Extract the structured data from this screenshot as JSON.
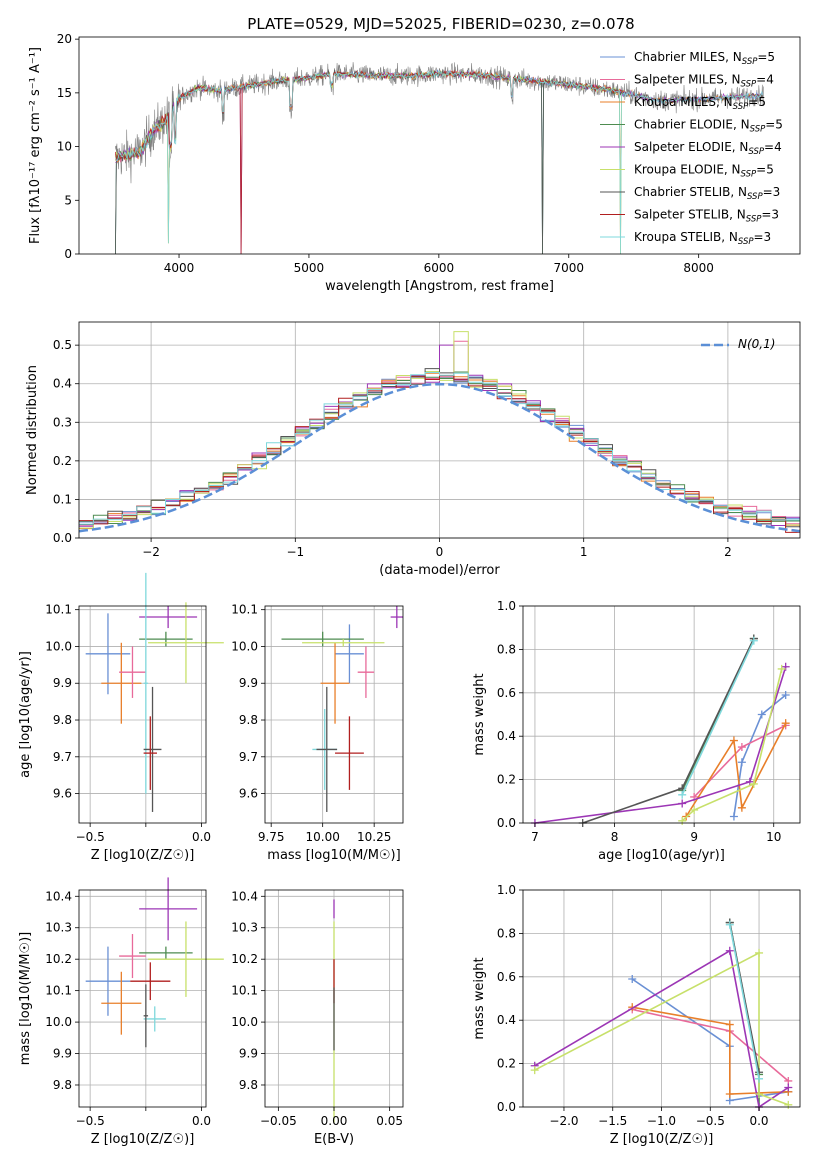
{
  "figure": {
    "title": "PLATE=0529, MJD=52025, FIBERID=0230, z=0.078"
  },
  "colors": {
    "Chabrier MILES": "#6a90d4",
    "Salpeter MILES": "#e86a9a",
    "Kroupa MILES": "#e87f2a",
    "Chabrier ELODIE": "#4e8c50",
    "Salpeter ELODIE": "#9c36b5",
    "Kroupa ELODIE": "#c7e06a",
    "Chabrier STELIB": "#555555",
    "Salpeter STELIB": "#b11f1f",
    "Kroupa STELIB": "#7fd8dc",
    "spectrum": "#808080",
    "normal": "#5b8fd6"
  },
  "legend": {
    "entries": [
      {
        "name": "Chabrier MILES",
        "label": "Chabrier MILES, N",
        "sub": "SSP",
        "eq": "=5"
      },
      {
        "name": "Salpeter MILES",
        "label": "Salpeter MILES, N",
        "sub": "SSP",
        "eq": "=4"
      },
      {
        "name": "Kroupa MILES",
        "label": "Kroupa MILES, N",
        "sub": "SSP",
        "eq": "=5"
      },
      {
        "name": "Chabrier ELODIE",
        "label": "Chabrier ELODIE, N",
        "sub": "SSP",
        "eq": "=5"
      },
      {
        "name": "Salpeter ELODIE",
        "label": "Salpeter ELODIE, N",
        "sub": "SSP",
        "eq": "=4"
      },
      {
        "name": "Kroupa ELODIE",
        "label": "Kroupa ELODIE, N",
        "sub": "SSP",
        "eq": "=5"
      },
      {
        "name": "Chabrier STELIB",
        "label": "Chabrier STELIB, N",
        "sub": "SSP",
        "eq": "=3"
      },
      {
        "name": "Salpeter STELIB",
        "label": "Salpeter STELIB, N",
        "sub": "SSP",
        "eq": "=3"
      },
      {
        "name": "Kroupa STELIB",
        "label": "Kroupa STELIB, N",
        "sub": "SSP",
        "eq": "=3"
      }
    ]
  },
  "chart_data": [
    {
      "id": "spectrum",
      "type": "line",
      "xlabel": "wavelength [Angstrom, rest frame]",
      "ylabel": "Flux [fλ10⁻¹⁷ erg cm⁻² s⁻¹ A⁻¹]",
      "xlim": [
        3230,
        8780
      ],
      "ylim": [
        0,
        20.2
      ],
      "xticks": [
        4000,
        5000,
        6000,
        7000,
        8000
      ],
      "yticks": [
        0,
        5,
        10,
        15,
        20
      ],
      "continuum": [
        [
          3520,
          9.0
        ],
        [
          3700,
          9.5
        ],
        [
          3800,
          11.5
        ],
        [
          3900,
          12.5
        ],
        [
          4000,
          14.5
        ],
        [
          4150,
          15.5
        ],
        [
          4300,
          15.2
        ],
        [
          4500,
          15.6
        ],
        [
          4800,
          16.2
        ],
        [
          5000,
          16.4
        ],
        [
          5200,
          16.8
        ],
        [
          5500,
          16.6
        ],
        [
          5800,
          16.6
        ],
        [
          6000,
          16.8
        ],
        [
          6300,
          16.7
        ],
        [
          6600,
          16.3
        ],
        [
          7000,
          15.8
        ],
        [
          7300,
          15.3
        ],
        [
          7700,
          14.3
        ],
        [
          8000,
          14.4
        ],
        [
          8400,
          14.7
        ],
        [
          8500,
          14.8
        ]
      ],
      "dips": [
        [
          3510,
          0
        ],
        [
          3915,
          1.0
        ],
        [
          4480,
          0
        ],
        [
          6800,
          0
        ],
        [
          7400,
          0
        ]
      ]
    },
    {
      "id": "residuals",
      "type": "histogram",
      "xlabel": "(data-model)/error",
      "ylabel": "Normed distribution",
      "xlim": [
        -2.5,
        2.5
      ],
      "ylim": [
        0,
        0.56
      ],
      "xticks": [
        -2,
        -1,
        0,
        1,
        2
      ],
      "yticks": [
        0.0,
        0.1,
        0.2,
        0.3,
        0.4,
        0.5
      ],
      "bin_width": 0.1,
      "legend": "N(0,1)"
    },
    {
      "id": "age-vs-Z",
      "type": "scatter",
      "xlabel": "Z [log10(Z/Z☉)]",
      "ylabel": "age  [log10(age/yr)]",
      "xlim": [
        -0.55,
        0.02
      ],
      "ylim": [
        9.52,
        10.11
      ],
      "xticks": [
        -0.5,
        -0.25,
        0.0
      ],
      "xtick_labels": [
        "−0.5",
        "",
        "0.0"
      ],
      "yticks": [
        9.6,
        9.7,
        9.8,
        9.9,
        10.0,
        10.1
      ],
      "points": [
        {
          "name": "Chabrier MILES",
          "x": -0.42,
          "xerr": 0.1,
          "y": 9.98,
          "yerr": 0.11
        },
        {
          "name": "Kroupa MILES",
          "x": -0.36,
          "xerr": 0.09,
          "y": 9.9,
          "yerr": 0.11
        },
        {
          "name": "Salpeter MILES",
          "x": -0.31,
          "xerr": 0.06,
          "y": 9.93,
          "yerr": 0.07
        },
        {
          "name": "Salpeter ELODIE",
          "x": -0.15,
          "xerr": 0.13,
          "y": 10.08,
          "yerr": 0.03
        },
        {
          "name": "Chabrier ELODIE",
          "x": -0.16,
          "xerr": 0.12,
          "y": 10.02,
          "yerr": 0.02
        },
        {
          "name": "Kroupa ELODIE",
          "x": -0.07,
          "xerr": 0.17,
          "y": 10.01,
          "yerr": 0.11
        },
        {
          "name": "Kroupa STELIB",
          "x": -0.25,
          "xerr": 0.01,
          "y": 9.9,
          "yerr": 0.3
        },
        {
          "name": "Chabrier STELIB",
          "x": -0.22,
          "xerr": 0.04,
          "y": 9.72,
          "yerr": 0.17
        },
        {
          "name": "Salpeter STELIB",
          "x": -0.23,
          "xerr": 0.03,
          "y": 9.71,
          "yerr": 0.1
        }
      ]
    },
    {
      "id": "age-vs-mass",
      "type": "scatter",
      "xlabel": "mass [log10(M/M☉)]",
      "xlim": [
        9.72,
        10.39
      ],
      "ylim": [
        9.52,
        10.11
      ],
      "xticks": [
        9.75,
        10.0,
        10.25
      ],
      "xtick_labels": [
        "9.75",
        "10.00",
        "10.25"
      ],
      "yticks": [
        9.6,
        9.7,
        9.8,
        9.9,
        10.0,
        10.1
      ],
      "points": [
        {
          "name": "Chabrier MILES",
          "x": 10.13,
          "xerr": 0.07,
          "y": 9.98,
          "yerr": 0.08
        },
        {
          "name": "Kroupa MILES",
          "x": 10.06,
          "xerr": 0.07,
          "y": 9.9,
          "yerr": 0.11
        },
        {
          "name": "Salpeter MILES",
          "x": 10.21,
          "xerr": 0.04,
          "y": 9.93,
          "yerr": 0.07
        },
        {
          "name": "Salpeter ELODIE",
          "x": 10.36,
          "xerr": 0.03,
          "y": 10.08,
          "yerr": 0.03
        },
        {
          "name": "Chabrier ELODIE",
          "x": 10.0,
          "xerr": 0.2,
          "y": 10.02,
          "yerr": 0.02
        },
        {
          "name": "Kroupa ELODIE",
          "x": 10.1,
          "xerr": 0.2,
          "y": 10.01,
          "yerr": 0.01
        },
        {
          "name": "Kroupa STELIB",
          "x": 10.01,
          "xerr": 0.06,
          "y": 9.72,
          "yerr": 0.11
        },
        {
          "name": "Chabrier STELIB",
          "x": 10.02,
          "xerr": 0.05,
          "y": 9.72,
          "yerr": 0.17
        },
        {
          "name": "Salpeter STELIB",
          "x": 10.13,
          "xerr": 0.07,
          "y": 9.71,
          "yerr": 0.1
        }
      ]
    },
    {
      "id": "weight-vs-age",
      "type": "line",
      "xlabel": "age  [log10(age/yr)]",
      "ylabel": "mass weight",
      "xlim": [
        6.85,
        10.33
      ],
      "ylim": [
        0,
        1.0
      ],
      "xticks": [
        7,
        8,
        9,
        10
      ],
      "yticks": [
        0.0,
        0.2,
        0.4,
        0.6,
        0.8,
        1.0
      ],
      "series": [
        {
          "name": "Chabrier MILES",
          "points": [
            [
              9.5,
              0.03
            ],
            [
              9.6,
              0.28
            ],
            [
              9.85,
              0.5
            ],
            [
              10.15,
              0.59
            ]
          ]
        },
        {
          "name": "Salpeter MILES",
          "points": [
            [
              9.0,
              0.12
            ],
            [
              9.6,
              0.35
            ],
            [
              10.15,
              0.45
            ]
          ]
        },
        {
          "name": "Kroupa MILES",
          "points": [
            [
              8.9,
              0.03
            ],
            [
              9.5,
              0.38
            ],
            [
              9.6,
              0.07
            ],
            [
              10.15,
              0.46
            ]
          ]
        },
        {
          "name": "Chabrier ELODIE",
          "points": [
            [
              8.85,
              0.15
            ],
            [
              9.75,
              0.85
            ]
          ]
        },
        {
          "name": "Salpeter ELODIE",
          "points": [
            [
              7.0,
              0.0
            ],
            [
              8.85,
              0.09
            ],
            [
              9.7,
              0.19
            ],
            [
              10.15,
              0.72
            ]
          ]
        },
        {
          "name": "Kroupa ELODIE",
          "points": [
            [
              8.85,
              0.01
            ],
            [
              9.0,
              0.06
            ],
            [
              9.75,
              0.18
            ],
            [
              10.1,
              0.71
            ]
          ]
        },
        {
          "name": "Chabrier STELIB",
          "points": [
            [
              7.6,
              0.0
            ],
            [
              8.85,
              0.16
            ],
            [
              9.75,
              0.85
            ]
          ]
        },
        {
          "name": "Kroupa STELIB",
          "points": [
            [
              8.85,
              0.13
            ],
            [
              9.75,
              0.84
            ]
          ]
        }
      ]
    },
    {
      "id": "mass-vs-Z",
      "type": "scatter",
      "xlabel": "Z [log10(Z/Z☉)]",
      "ylabel": "mass [log10(M/M☉)]",
      "xlim": [
        -0.55,
        0.02
      ],
      "ylim": [
        9.73,
        10.42
      ],
      "xticks": [
        -0.5,
        -0.25,
        0.0
      ],
      "xtick_labels": [
        "−0.5",
        "",
        "0.0"
      ],
      "yticks": [
        9.8,
        9.9,
        10.0,
        10.1,
        10.2,
        10.3,
        10.4
      ],
      "points": [
        {
          "name": "Chabrier MILES",
          "x": -0.42,
          "xerr": 0.1,
          "y": 10.13,
          "yerr": 0.11
        },
        {
          "name": "Kroupa MILES",
          "x": -0.36,
          "xerr": 0.09,
          "y": 10.06,
          "yerr": 0.1
        },
        {
          "name": "Salpeter MILES",
          "x": -0.31,
          "xerr": 0.06,
          "y": 10.21,
          "yerr": 0.07
        },
        {
          "name": "Salpeter ELODIE",
          "x": -0.15,
          "xerr": 0.13,
          "y": 10.36,
          "yerr": 0.1
        },
        {
          "name": "Chabrier ELODIE",
          "x": -0.16,
          "xerr": 0.12,
          "y": 10.22,
          "yerr": 0.02
        },
        {
          "name": "Kroupa ELODIE",
          "x": -0.07,
          "xerr": 0.17,
          "y": 10.2,
          "yerr": 0.12
        },
        {
          "name": "Kroupa STELIB",
          "x": -0.21,
          "xerr": 0.05,
          "y": 10.01,
          "yerr": 0.04
        },
        {
          "name": "Chabrier STELIB",
          "x": -0.25,
          "xerr": 0.01,
          "y": 10.02,
          "yerr": 0.1
        },
        {
          "name": "Salpeter STELIB",
          "x": -0.23,
          "xerr": 0.09,
          "y": 10.13,
          "yerr": 0.06
        }
      ]
    },
    {
      "id": "mass-vs-EBV",
      "type": "scatter",
      "xlabel": "E(B-V)",
      "xlim": [
        -0.062,
        0.062
      ],
      "ylim": [
        9.73,
        10.42
      ],
      "xticks": [
        -0.05,
        0.0,
        0.05
      ],
      "xtick_labels": [
        "−0.05",
        "0.00",
        "0.05"
      ],
      "yticks": [
        9.8,
        9.9,
        10.0,
        10.1,
        10.2,
        10.3,
        10.4
      ],
      "points": [
        {
          "name": "Salpeter ELODIE",
          "x": 0.0,
          "xerr": 0,
          "y": 10.36,
          "yerr": 0.03
        },
        {
          "name": "Kroupa ELODIE",
          "x": 0.0,
          "xerr": 0,
          "y": 10.0,
          "yerr": 0.32
        },
        {
          "name": "Salpeter STELIB",
          "x": 0.0,
          "xerr": 0,
          "y": 10.13,
          "yerr": 0.07
        },
        {
          "name": "Chabrier STELIB",
          "x": 0.0,
          "xerr": 0,
          "y": 10.01,
          "yerr": 0.1
        }
      ]
    },
    {
      "id": "weight-vs-Z",
      "type": "line",
      "xlabel": "Z [log10(Z/Z☉)]",
      "ylabel": "mass weight",
      "xlim": [
        -2.42,
        0.42
      ],
      "ylim": [
        0,
        1.0
      ],
      "xticks": [
        -2.0,
        -1.5,
        -1.0,
        -0.5,
        0.0
      ],
      "xtick_labels": [
        "−2.0",
        "−1.5",
        "−1.0",
        "−0.5",
        "0.0"
      ],
      "yticks": [
        0.0,
        0.2,
        0.4,
        0.6,
        0.8,
        1.0
      ],
      "series": [
        {
          "name": "Chabrier MILES",
          "points": [
            [
              -1.3,
              0.59
            ],
            [
              -0.3,
              0.28
            ],
            [
              -0.3,
              0.03
            ],
            [
              0.3,
              0.07
            ]
          ]
        },
        {
          "name": "Salpeter MILES",
          "points": [
            [
              -1.3,
              0.45
            ],
            [
              -0.3,
              0.35
            ],
            [
              0.3,
              0.12
            ]
          ]
        },
        {
          "name": "Kroupa MILES",
          "points": [
            [
              -1.3,
              0.46
            ],
            [
              -0.3,
              0.38
            ],
            [
              -0.3,
              0.06
            ],
            [
              0.3,
              0.07
            ]
          ]
        },
        {
          "name": "Chabrier ELODIE",
          "points": [
            [
              -0.3,
              0.85
            ],
            [
              0.0,
              0.15
            ],
            [
              0.0,
              0.0
            ]
          ]
        },
        {
          "name": "Salpeter ELODIE",
          "points": [
            [
              -2.3,
              0.19
            ],
            [
              -0.3,
              0.72
            ],
            [
              0.0,
              0.0
            ],
            [
              0.3,
              0.09
            ]
          ]
        },
        {
          "name": "Kroupa ELODIE",
          "points": [
            [
              -2.3,
              0.17
            ],
            [
              0.0,
              0.71
            ],
            [
              0.0,
              0.06
            ],
            [
              0.3,
              0.01
            ]
          ]
        },
        {
          "name": "Chabrier STELIB",
          "points": [
            [
              -0.3,
              0.85
            ],
            [
              0.0,
              0.16
            ]
          ]
        },
        {
          "name": "Kroupa STELIB",
          "points": [
            [
              -0.3,
              0.84
            ],
            [
              0.0,
              0.13
            ]
          ]
        }
      ]
    }
  ]
}
